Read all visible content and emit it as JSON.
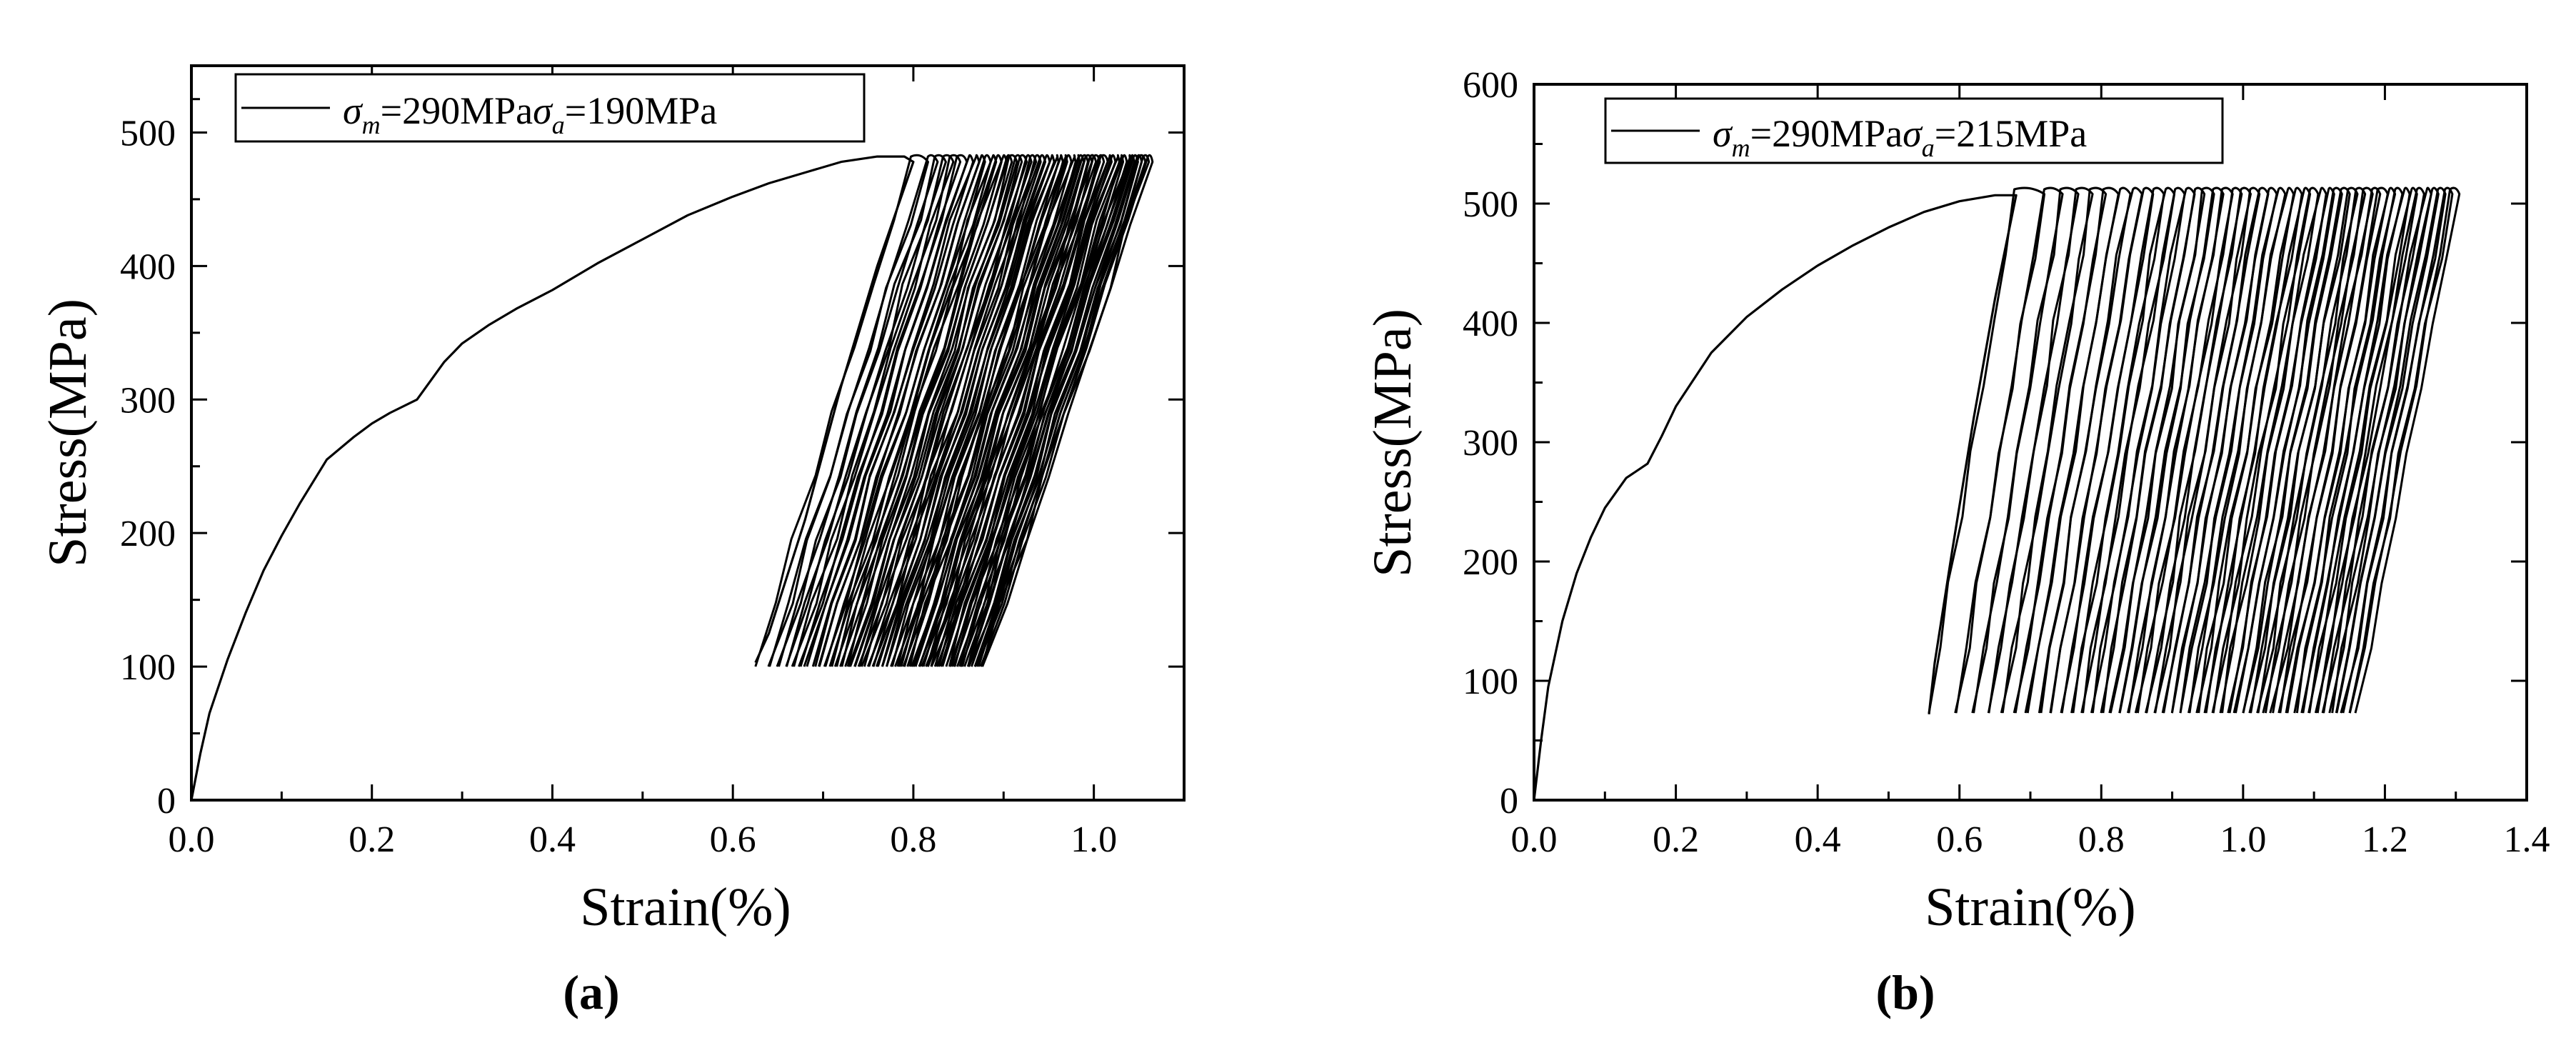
{
  "figure": {
    "panels": [
      {
        "panel_label": "(a)"
      },
      {
        "panel_label": "(b)"
      }
    ]
  },
  "chart_data": [
    {
      "type": "line",
      "panel_label": "(a)",
      "xlabel": "Strain(%)",
      "ylabel": "Stress(MPa)",
      "xlim": [
        0.0,
        1.1
      ],
      "ylim": [
        0,
        550
      ],
      "xticks": [
        "0.0",
        "0.2",
        "0.4",
        "0.6",
        "0.8",
        "1.0"
      ],
      "xtick_values": [
        0.0,
        0.2,
        0.4,
        0.6,
        0.8,
        1.0
      ],
      "yticks": [
        "0",
        "100",
        "200",
        "300",
        "400",
        "500"
      ],
      "ytick_values": [
        0,
        100,
        200,
        300,
        400,
        500
      ],
      "grid": false,
      "legend": {
        "placement": "top-left",
        "sigma_m_symbol": "σ",
        "sigma_m_sub": "m",
        "sigma_m_value": "=290MPa",
        "sigma_a_symbol": "σ",
        "sigma_a_sub": "a",
        "sigma_a_value": "=190MPa"
      },
      "line_color": "#000000",
      "monotonic_loading": {
        "x": [
          0.0,
          0.01,
          0.02,
          0.04,
          0.06,
          0.08,
          0.1,
          0.12,
          0.15,
          0.18,
          0.2,
          0.22,
          0.25,
          0.28,
          0.3,
          0.33,
          0.36,
          0.4,
          0.45,
          0.5,
          0.55,
          0.6,
          0.64,
          0.68,
          0.72,
          0.76,
          0.79,
          0.8
        ],
        "y": [
          0,
          35,
          65,
          105,
          140,
          172,
          198,
          222,
          255,
          272,
          282,
          290,
          300,
          328,
          342,
          356,
          368,
          382,
          402,
          420,
          438,
          452,
          462,
          470,
          478,
          482,
          482,
          478
        ]
      },
      "first_unloading": {
        "x": [
          0.8,
          0.76,
          0.72,
          0.68,
          0.64,
          0.625
        ],
        "y": [
          478,
          400,
          310,
          210,
          125,
          103
        ]
      },
      "cyclic_band": {
        "cycle_count": 48,
        "max_stress": 482,
        "min_stress": 100,
        "start_strain_at_min": 0.625,
        "end_strain_at_min": 0.88,
        "start_strain_at_max": 0.8,
        "end_strain_at_max": 1.065
      }
    },
    {
      "type": "line",
      "panel_label": "(b)",
      "xlabel": "Strain(%)",
      "ylabel": "Stress(MPa)",
      "xlim": [
        0.0,
        1.4
      ],
      "ylim": [
        0,
        600
      ],
      "xticks": [
        "0.0",
        "0.2",
        "0.4",
        "0.6",
        "0.8",
        "1.0",
        "1.2",
        "1.4"
      ],
      "xtick_values": [
        0.0,
        0.2,
        0.4,
        0.6,
        0.8,
        1.0,
        1.2,
        1.4
      ],
      "yticks": [
        "0",
        "100",
        "200",
        "300",
        "400",
        "500",
        "600"
      ],
      "ytick_values": [
        0,
        100,
        200,
        300,
        400,
        500,
        600
      ],
      "grid": false,
      "legend": {
        "placement": "top-left",
        "sigma_m_symbol": "σ",
        "sigma_m_sub": "m",
        "sigma_m_value": "=290MPa",
        "sigma_a_symbol": "σ",
        "sigma_a_sub": "a",
        "sigma_a_value": "=215MPa"
      },
      "line_color": "#000000",
      "monotonic_loading": {
        "x": [
          0.0,
          0.01,
          0.02,
          0.04,
          0.06,
          0.08,
          0.1,
          0.13,
          0.16,
          0.18,
          0.2,
          0.25,
          0.3,
          0.35,
          0.4,
          0.45,
          0.5,
          0.55,
          0.6,
          0.65,
          0.68
        ],
        "y": [
          0,
          50,
          95,
          150,
          190,
          220,
          245,
          270,
          282,
          305,
          330,
          375,
          405,
          428,
          448,
          465,
          480,
          493,
          502,
          507,
          507
        ]
      },
      "first_unloading": {
        "x": [
          0.68,
          0.65,
          0.62,
          0.59,
          0.565,
          0.557
        ],
        "y": [
          507,
          420,
          320,
          210,
          115,
          72
        ]
      },
      "cyclic_band": {
        "cycle_count": 46,
        "max_stress": 512,
        "min_stress": 73,
        "start_strain_at_min": 0.557,
        "end_strain_at_min": 1.16,
        "start_strain_at_max": 0.68,
        "end_strain_at_max": 1.305
      }
    }
  ]
}
